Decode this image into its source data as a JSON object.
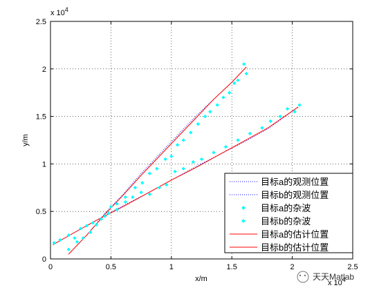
{
  "chart_data": {
    "type": "scatter",
    "xlabel": "x/m",
    "ylabel": "y/m",
    "xlim": [
      0,
      2.5
    ],
    "ylim": [
      0,
      2.5
    ],
    "x_exponent_label": "x 10",
    "x_exponent_power": "4",
    "y_exponent_label": "x 10",
    "y_exponent_power": "4",
    "xticks": [
      0,
      0.5,
      1,
      1.5,
      2,
      2.5
    ],
    "xtick_labels": [
      "0",
      "0.5",
      "1",
      "1.5",
      "2",
      "2.5"
    ],
    "yticks": [
      0,
      0.5,
      1,
      1.5,
      2,
      2.5
    ],
    "ytick_labels": [
      "0",
      "0.5",
      "1",
      "1.5",
      "2",
      "2.5"
    ],
    "grid": true,
    "legend_position": "bottom-right",
    "colors": {
      "observed": "#0000ff",
      "clutter": "#00ffff",
      "estimate": "#ff0000"
    },
    "series": [
      {
        "name": "目标a的观测位置",
        "style": "dotted",
        "color": "#0000ff",
        "x": [
          0.15,
          0.3,
          0.45,
          0.6,
          0.75,
          0.9,
          1.05,
          1.2,
          1.35,
          1.5,
          1.62
        ],
        "y": [
          0.05,
          0.25,
          0.48,
          0.68,
          0.9,
          1.1,
          1.3,
          1.5,
          1.68,
          1.86,
          2.02
        ]
      },
      {
        "name": "目标b的观测位置",
        "style": "dotted",
        "color": "#0000ff",
        "x": [
          0.02,
          0.2,
          0.4,
          0.6,
          0.8,
          1.0,
          1.2,
          1.4,
          1.6,
          1.8,
          2.05
        ],
        "y": [
          0.15,
          0.28,
          0.42,
          0.56,
          0.69,
          0.83,
          0.97,
          1.1,
          1.23,
          1.37,
          1.6
        ]
      },
      {
        "name": "目标a的杂波",
        "style": "marker",
        "color": "#00ffff",
        "x": [
          0.15,
          0.22,
          0.27,
          0.33,
          0.38,
          0.45,
          0.5,
          0.55,
          0.62,
          0.7,
          0.76,
          0.82,
          0.88,
          0.95,
          1.0,
          1.05,
          1.1,
          1.16,
          1.22,
          1.28,
          1.32,
          1.38,
          1.43,
          1.48,
          1.52,
          1.55,
          1.6,
          1.62
        ],
        "y": [
          0.1,
          0.18,
          0.22,
          0.28,
          0.36,
          0.45,
          0.55,
          0.58,
          0.65,
          0.75,
          0.8,
          0.9,
          0.95,
          1.05,
          1.08,
          1.2,
          1.25,
          1.33,
          1.42,
          1.5,
          1.55,
          1.62,
          1.7,
          1.75,
          1.85,
          1.88,
          2.05,
          1.95
        ]
      },
      {
        "name": "目标b的杂波",
        "style": "marker",
        "color": "#00ffff",
        "x": [
          0.03,
          0.08,
          0.15,
          0.2,
          0.25,
          0.3,
          0.35,
          0.42,
          0.48,
          0.55,
          0.62,
          0.68,
          0.75,
          0.82,
          0.9,
          0.96,
          1.03,
          1.1,
          1.18,
          1.25,
          1.35,
          1.45,
          1.55,
          1.65,
          1.75,
          1.82,
          1.9,
          1.96,
          2.02,
          2.06
        ],
        "y": [
          0.17,
          0.2,
          0.25,
          0.22,
          0.32,
          0.35,
          0.38,
          0.42,
          0.48,
          0.52,
          0.6,
          0.65,
          0.7,
          0.68,
          0.75,
          0.78,
          0.92,
          0.95,
          1.02,
          1.05,
          1.12,
          1.18,
          1.25,
          1.32,
          1.38,
          1.45,
          1.5,
          1.58,
          1.55,
          1.62
        ]
      },
      {
        "name": "目标a的估计位置",
        "style": "solid",
        "color": "#ff0000",
        "x": [
          0.15,
          0.3,
          0.45,
          0.6,
          0.75,
          0.9,
          1.05,
          1.2,
          1.35,
          1.5,
          1.62
        ],
        "y": [
          0.05,
          0.25,
          0.47,
          0.67,
          0.88,
          1.08,
          1.28,
          1.48,
          1.68,
          1.86,
          2.02
        ]
      },
      {
        "name": "目标b的估计位置",
        "style": "solid",
        "color": "#ff0000",
        "x": [
          0.02,
          0.2,
          0.4,
          0.6,
          0.8,
          1.0,
          1.2,
          1.4,
          1.6,
          1.8,
          2.05
        ],
        "y": [
          0.15,
          0.28,
          0.42,
          0.55,
          0.69,
          0.83,
          0.96,
          1.1,
          1.24,
          1.38,
          1.6
        ]
      }
    ]
  },
  "watermark": {
    "text": "天天Matlab"
  }
}
